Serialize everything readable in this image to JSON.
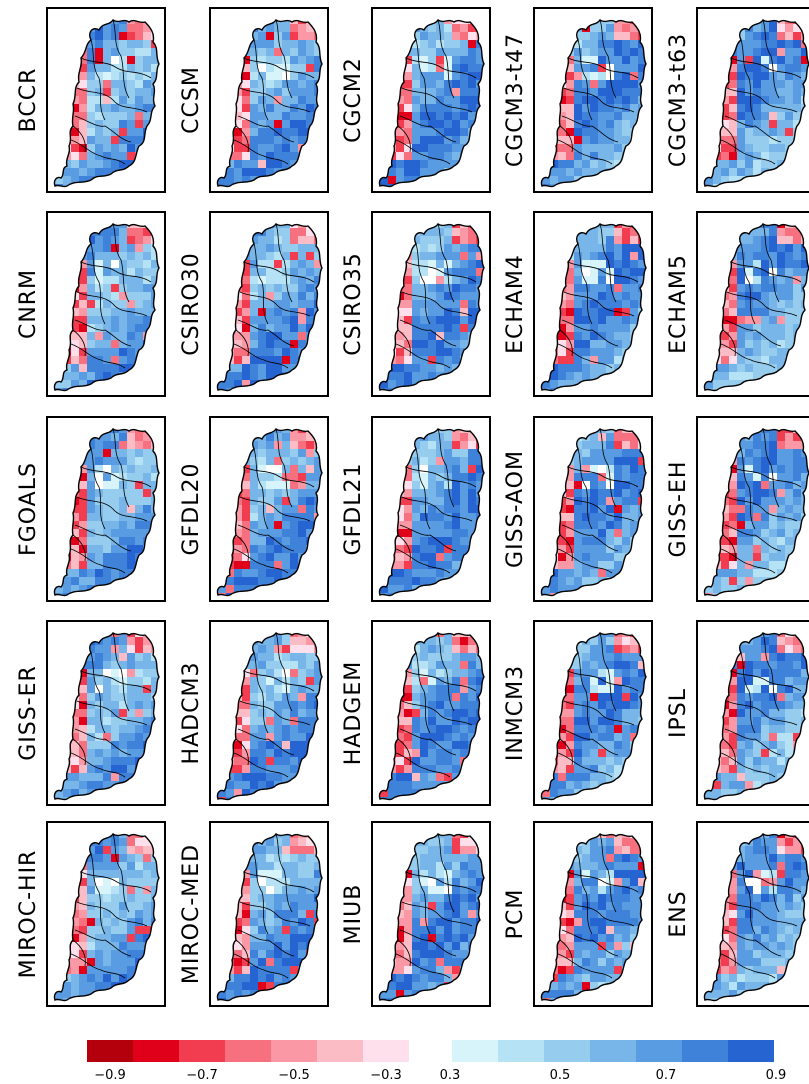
{
  "rows": [
    [
      "BCCR",
      "CNRM",
      "FGOALS",
      "GISS-ER",
      "MIROC-HIR"
    ],
    [
      "CCSM",
      "CSIRO30",
      "GFDL20",
      "HADCM3",
      "MIROC-MED"
    ],
    [
      "CGCM2",
      "CSIRO35",
      "GFDL21",
      "HADGEM",
      "MIUB"
    ],
    [
      "CGCM3-t47",
      "ECHAM4",
      "GISS-AOM",
      "INMCM3",
      "PCM"
    ],
    [
      "CGCM3-t63",
      "ECHAM5",
      "GISS-EH",
      "IPSL",
      "ENS"
    ]
  ],
  "colorbar": {
    "negative_colors": [
      "#b3000c",
      "#e0001a",
      "#f23c50",
      "#f7707f",
      "#fa98a5",
      "#fcbcc6",
      "#fde0ec"
    ],
    "positive_colors": [
      "#d6f4fa",
      "#b5e3f5",
      "#96cdef",
      "#78b6e9",
      "#5a9ce2",
      "#3f82da",
      "#2664d2"
    ],
    "negative_ticks": [
      "−0.9",
      "−0.7",
      "−0.5",
      "−0.3"
    ],
    "positive_ticks": [
      "0.3",
      "0.5",
      "0.7",
      "0.9"
    ]
  }
}
